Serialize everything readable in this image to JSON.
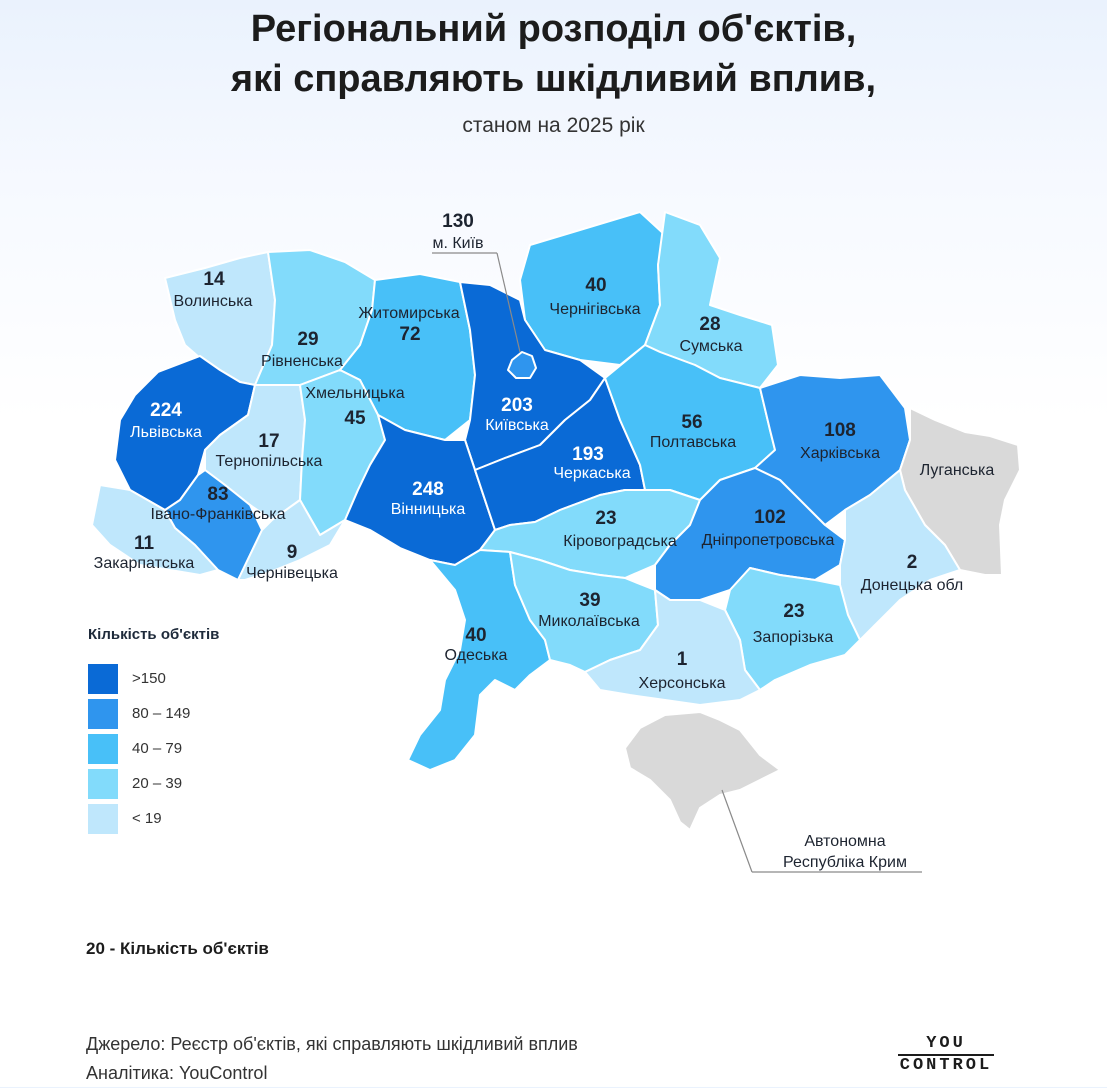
{
  "title_line1": "Регіональний розподіл об'єктів,",
  "title_line2": "які справляють шкідливий вплив,",
  "subtitle": "станом на 2025 рік",
  "colors": {
    "gt150": "#0a6ad6",
    "r80_149": "#2f95ee",
    "r40_79": "#48c0f8",
    "r20_39": "#82dbfb",
    "lt19": "#bfe7fc",
    "occupied": "#d9d9d9"
  },
  "regions": {
    "volynska": {
      "name": "Волинська",
      "value": "14"
    },
    "rivnenska": {
      "name": "Рівненська",
      "value": "29"
    },
    "zhytomyrska": {
      "name": "Житомирська",
      "value": "72"
    },
    "kyiv_city": {
      "name": "м. Київ",
      "value": "130"
    },
    "kyivska": {
      "name": "Київська",
      "value": "203"
    },
    "chernihivska": {
      "name": "Чернігівська",
      "value": "40"
    },
    "sumska": {
      "name": "Сумська",
      "value": "28"
    },
    "lvivska": {
      "name": "Львівська",
      "value": "224"
    },
    "khmelnytska": {
      "name": "Хмельницька",
      "value": "45"
    },
    "ternopilska": {
      "name": "Тернопільська",
      "value": "17"
    },
    "vinnytska": {
      "name": "Вінницька",
      "value": "248"
    },
    "cherkaska": {
      "name": "Черкаська",
      "value": "193"
    },
    "poltavska": {
      "name": "Полтавська",
      "value": "56"
    },
    "kharkivska": {
      "name": "Харківська",
      "value": "108"
    },
    "luhanska": {
      "name": "Луганська"
    },
    "ivano_frankivska": {
      "name": "Івано-Франківська",
      "value": "83"
    },
    "zakarpatska": {
      "name": "Закарпатська",
      "value": "11"
    },
    "chernivetska": {
      "name": "Чернівецька",
      "value": "9"
    },
    "kirovohradska": {
      "name": "Кіровоградська",
      "value": "23"
    },
    "dnipropetrovska": {
      "name": "Дніпропетровська",
      "value": "102"
    },
    "donetska": {
      "name": "Донецька обл",
      "value": "2"
    },
    "odeska": {
      "name": "Одеська",
      "value": "40"
    },
    "mykolaivska": {
      "name": "Миколаївська",
      "value": "39"
    },
    "zaporizka": {
      "name": "Запорізька",
      "value": "23"
    },
    "khersonska": {
      "name": "Херсонська",
      "value": "1"
    },
    "crimea": {
      "name_line1": "Автономна",
      "name_line2": "Республіка Крим"
    }
  },
  "legend": {
    "title": "Кількість об'єктів",
    "items": [
      {
        "label": ">150",
        "color": "#0a6ad6"
      },
      {
        "label": "80 – 149",
        "color": "#2f95ee"
      },
      {
        "label": "40 – 79",
        "color": "#48c0f8"
      },
      {
        "label": "20 – 39",
        "color": "#82dbfb"
      },
      {
        "label": "< 19",
        "color": "#bfe7fc"
      }
    ]
  },
  "note": "20 - Кількість об'єктів",
  "source_line1": "Джерело: Реєстр об'єктів, які справляють шкідливий вплив",
  "source_line2": "Аналітика: YouControl",
  "logo_line1": "YOU",
  "logo_line2": "CONTROL"
}
